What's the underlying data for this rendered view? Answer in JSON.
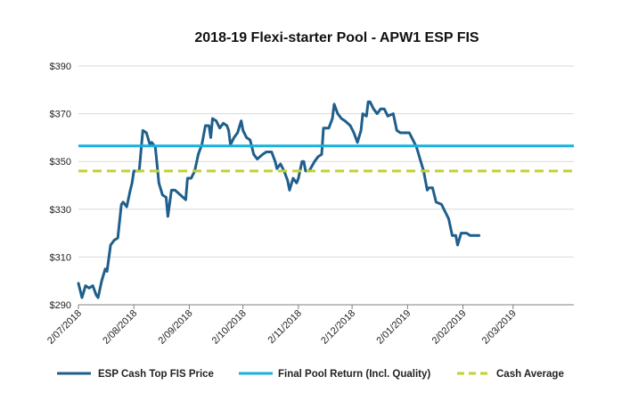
{
  "chart_data": {
    "type": "line",
    "title": "2018-19 Flexi-starter Pool - APW1 ESP FIS",
    "xlabel": "",
    "ylabel": "",
    "ylim": [
      290,
      390
    ],
    "yticks": [
      290,
      310,
      330,
      350,
      370,
      390
    ],
    "ytick_labels": [
      "$290",
      "$310",
      "$330",
      "$350",
      "$370",
      "$390"
    ],
    "xlim": [
      "2018-07-02",
      "2019-04-05"
    ],
    "xticks": [
      "2018-07-02",
      "2018-08-02",
      "2018-09-02",
      "2018-10-02",
      "2018-11-02",
      "2018-12-02",
      "2019-01-02",
      "2019-02-02",
      "2019-03-02"
    ],
    "xtick_labels": [
      "2/07/2018",
      "2/08/2018",
      "2/09/2018",
      "2/10/2018",
      "2/11/2018",
      "2/12/2018",
      "2/01/2019",
      "2/02/2019",
      "2/03/2019"
    ],
    "grid": "horizontal",
    "legend_position": "bottom",
    "colors": {
      "price": "#1f5f8b",
      "final_return": "#1ab0dc",
      "cash_average": "#c4d22b",
      "grid": "#d9d9d9",
      "axis": "#808080",
      "text": "#222222"
    },
    "series": [
      {
        "name": "ESP Cash Top FIS Price",
        "style": "solid",
        "points": [
          [
            "2018-07-02",
            299
          ],
          [
            "2018-07-04",
            293
          ],
          [
            "2018-07-06",
            298
          ],
          [
            "2018-07-08",
            297
          ],
          [
            "2018-07-10",
            298
          ],
          [
            "2018-07-12",
            294
          ],
          [
            "2018-07-13",
            293
          ],
          [
            "2018-07-15",
            300
          ],
          [
            "2018-07-17",
            305
          ],
          [
            "2018-07-18",
            304
          ],
          [
            "2018-07-20",
            315
          ],
          [
            "2018-07-22",
            317
          ],
          [
            "2018-07-24",
            318
          ],
          [
            "2018-07-26",
            332
          ],
          [
            "2018-07-27",
            333
          ],
          [
            "2018-07-29",
            331
          ],
          [
            "2018-07-31",
            338
          ],
          [
            "2018-08-01",
            341
          ],
          [
            "2018-08-02",
            346
          ],
          [
            "2018-08-05",
            346
          ],
          [
            "2018-08-07",
            363
          ],
          [
            "2018-08-09",
            362
          ],
          [
            "2018-08-11",
            357
          ],
          [
            "2018-08-12",
            358
          ],
          [
            "2018-08-14",
            356
          ],
          [
            "2018-08-16",
            341
          ],
          [
            "2018-08-18",
            336
          ],
          [
            "2018-08-20",
            335
          ],
          [
            "2018-08-21",
            327
          ],
          [
            "2018-08-23",
            338
          ],
          [
            "2018-08-25",
            338
          ],
          [
            "2018-08-28",
            336
          ],
          [
            "2018-08-31",
            334
          ],
          [
            "2018-09-01",
            343
          ],
          [
            "2018-09-03",
            343
          ],
          [
            "2018-09-05",
            346
          ],
          [
            "2018-09-07",
            353
          ],
          [
            "2018-09-09",
            357
          ],
          [
            "2018-09-11",
            365
          ],
          [
            "2018-09-13",
            365
          ],
          [
            "2018-09-14",
            360
          ],
          [
            "2018-09-15",
            368
          ],
          [
            "2018-09-17",
            367
          ],
          [
            "2018-09-19",
            364
          ],
          [
            "2018-09-21",
            366
          ],
          [
            "2018-09-23",
            365
          ],
          [
            "2018-09-24",
            363
          ],
          [
            "2018-09-25",
            357
          ],
          [
            "2018-09-27",
            360
          ],
          [
            "2018-09-29",
            362
          ],
          [
            "2018-10-01",
            367
          ],
          [
            "2018-10-02",
            363
          ],
          [
            "2018-10-04",
            360
          ],
          [
            "2018-10-06",
            359
          ],
          [
            "2018-10-08",
            353
          ],
          [
            "2018-10-10",
            351
          ],
          [
            "2018-10-13",
            353
          ],
          [
            "2018-10-15",
            354
          ],
          [
            "2018-10-18",
            354
          ],
          [
            "2018-10-20",
            350
          ],
          [
            "2018-10-21",
            347
          ],
          [
            "2018-10-23",
            349
          ],
          [
            "2018-10-25",
            346
          ],
          [
            "2018-10-27",
            342
          ],
          [
            "2018-10-28",
            338
          ],
          [
            "2018-10-30",
            343
          ],
          [
            "2018-11-01",
            341
          ],
          [
            "2018-11-02",
            343
          ],
          [
            "2018-11-04",
            350
          ],
          [
            "2018-11-05",
            350
          ],
          [
            "2018-11-06",
            346
          ],
          [
            "2018-11-08",
            346
          ],
          [
            "2018-11-11",
            350
          ],
          [
            "2018-11-13",
            352
          ],
          [
            "2018-11-15",
            353
          ],
          [
            "2018-11-16",
            364
          ],
          [
            "2018-11-19",
            364
          ],
          [
            "2018-11-21",
            368
          ],
          [
            "2018-11-22",
            374
          ],
          [
            "2018-11-24",
            370
          ],
          [
            "2018-11-26",
            368
          ],
          [
            "2018-11-28",
            367
          ],
          [
            "2018-12-01",
            365
          ],
          [
            "2018-12-03",
            362
          ],
          [
            "2018-12-05",
            358
          ],
          [
            "2018-12-07",
            363
          ],
          [
            "2018-12-08",
            370
          ],
          [
            "2018-12-10",
            369
          ],
          [
            "2018-12-11",
            375
          ],
          [
            "2018-12-12",
            375
          ],
          [
            "2018-12-14",
            372
          ],
          [
            "2018-12-16",
            370
          ],
          [
            "2018-12-18",
            372
          ],
          [
            "2018-12-20",
            372
          ],
          [
            "2018-12-22",
            369
          ],
          [
            "2018-12-25",
            370
          ],
          [
            "2018-12-27",
            363
          ],
          [
            "2018-12-29",
            362
          ],
          [
            "2019-01-03",
            362
          ],
          [
            "2019-01-05",
            359
          ],
          [
            "2019-01-07",
            356
          ],
          [
            "2019-01-09",
            351
          ],
          [
            "2019-01-11",
            346
          ],
          [
            "2019-01-13",
            338
          ],
          [
            "2019-01-14",
            339
          ],
          [
            "2019-01-16",
            339
          ],
          [
            "2019-01-18",
            333
          ],
          [
            "2019-01-21",
            332
          ],
          [
            "2019-01-23",
            329
          ],
          [
            "2019-01-25",
            326
          ],
          [
            "2019-01-27",
            319
          ],
          [
            "2019-01-29",
            319
          ],
          [
            "2019-01-30",
            315
          ],
          [
            "2019-02-01",
            320
          ],
          [
            "2019-02-04",
            320
          ],
          [
            "2019-02-06",
            319
          ],
          [
            "2019-02-11",
            319
          ]
        ]
      },
      {
        "name": "Final Pool Return (Incl. Quality)",
        "style": "solid",
        "constant": 356.5
      },
      {
        "name": "Cash Average",
        "style": "dashed",
        "constant": 346
      }
    ]
  }
}
